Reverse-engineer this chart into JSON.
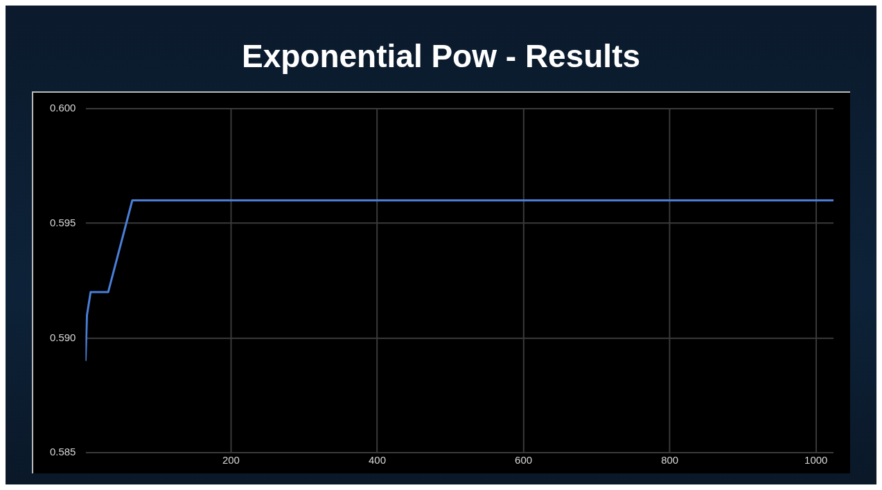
{
  "chart_data": {
    "type": "line",
    "title": "Exponential Pow - Results",
    "x": [
      1,
      3,
      8,
      32,
      65,
      1024
    ],
    "series": [
      {
        "color": "#4a7fd8",
        "values": [
          0.589,
          0.591,
          0.592,
          0.592,
          0.596,
          0.596
        ]
      }
    ],
    "xlim": [
      1,
      1024
    ],
    "xticks": [
      200,
      400,
      600,
      800,
      1000
    ],
    "ylim": [
      0.585,
      0.6
    ],
    "yticks": [
      0.585,
      {
        "value": 0.59,
        "label": "0.590"
      },
      0.595,
      {
        "value": 0.6,
        "label": "0.600"
      }
    ],
    "grid": true,
    "legend": false,
    "marker": "none",
    "line_style": "solid"
  }
}
